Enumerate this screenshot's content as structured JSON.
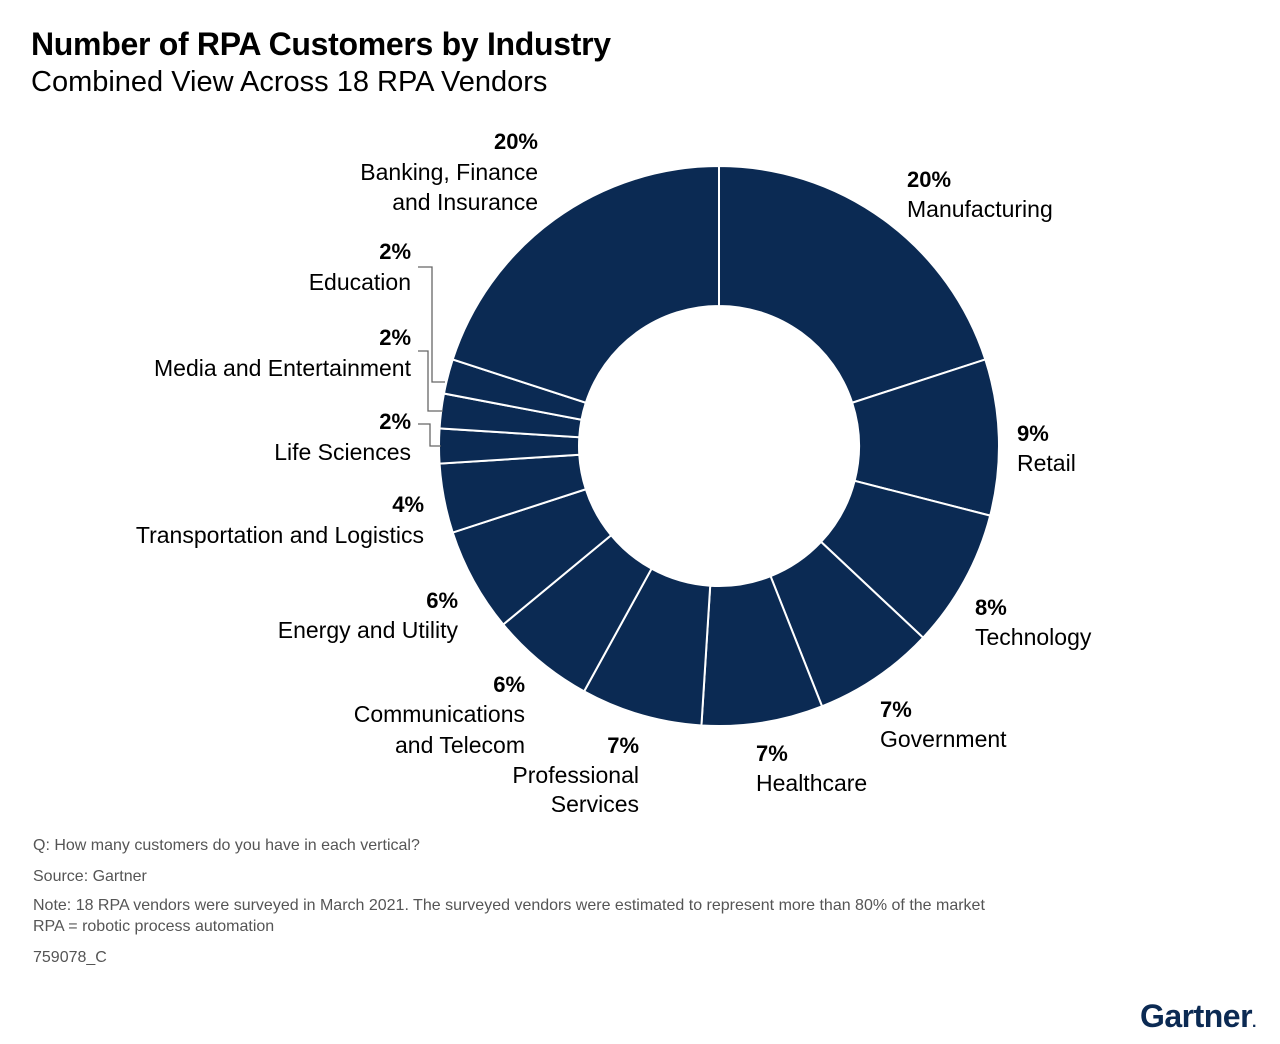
{
  "title": "Number of RPA Customers by Industry",
  "subtitle": "Combined View Across 18 RPA Vendors",
  "chart_data": {
    "type": "pie",
    "donut": true,
    "color": "#0b2a53",
    "slices": [
      {
        "label": "Manufacturing",
        "value": 20,
        "value_label": "20%"
      },
      {
        "label": "Retail",
        "value": 9,
        "value_label": "9%"
      },
      {
        "label": "Technology",
        "value": 8,
        "value_label": "8%"
      },
      {
        "label": "Government",
        "value": 7,
        "value_label": "7%"
      },
      {
        "label": "Healthcare",
        "value": 7,
        "value_label": "7%"
      },
      {
        "label": "Professional Services",
        "value": 7,
        "value_label": "7%"
      },
      {
        "label": "Communications and Telecom",
        "value": 6,
        "value_label": "6%"
      },
      {
        "label": "Energy and Utility",
        "value": 6,
        "value_label": "6%"
      },
      {
        "label": "Transportation and Logistics",
        "value": 4,
        "value_label": "4%"
      },
      {
        "label": "Life Sciences",
        "value": 2,
        "value_label": "2%"
      },
      {
        "label": "Media and Entertainment",
        "value": 2,
        "value_label": "2%"
      },
      {
        "label": "Education",
        "value": 2,
        "value_label": "2%"
      },
      {
        "label": "Banking, Finance and Insurance",
        "value": 20,
        "value_label": "20%"
      }
    ]
  },
  "footer": {
    "question": "Q: How many customers do you have in each vertical?",
    "source": "Source: Gartner",
    "note": "Note: 18 RPA vendors were surveyed in March 2021. The surveyed vendors were estimated to represent more than 80% of the market",
    "definition": "RPA = robotic process automation",
    "id": "759078_C"
  },
  "logo": "Gartner"
}
